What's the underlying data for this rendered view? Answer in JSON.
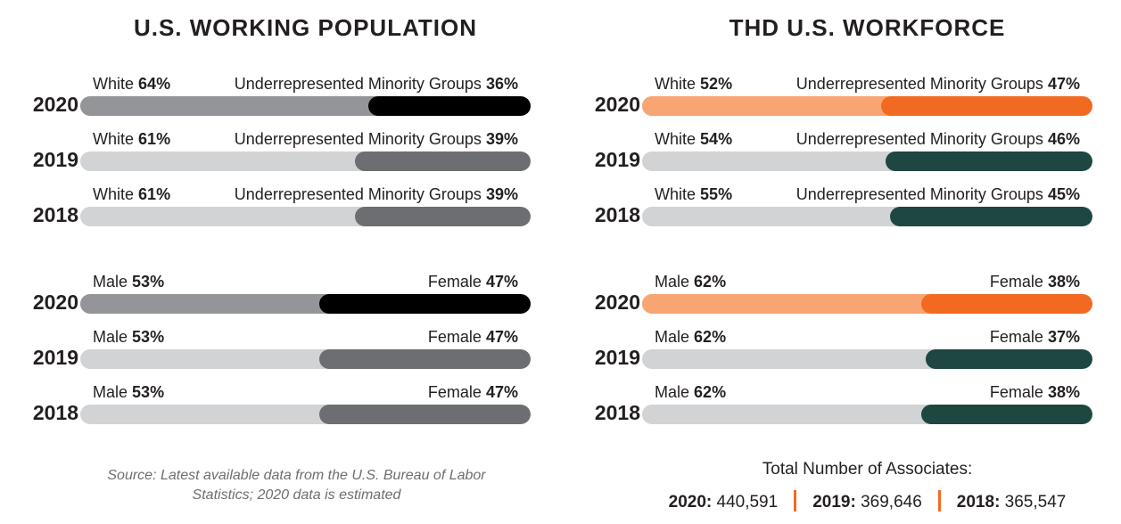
{
  "colors": {
    "track": "#d1d3d4",
    "usa_primary": "#939598",
    "usa_highlight": "#000000",
    "usa_secondary": "#6d6e71",
    "thd_primary": "#f8a573",
    "thd_highlight": "#f26a21",
    "thd_secondary": "#1d4740"
  },
  "chart_data": [
    {
      "type": "bar",
      "title": "U.S. WORKING POPULATION",
      "groups": [
        {
          "rows": [
            {
              "year": "2020",
              "left_label": "White",
              "left_value": 64,
              "right_label": "Underrepresented Minority Groups",
              "right_value": 36
            },
            {
              "year": "2019",
              "left_label": "White",
              "left_value": 61,
              "right_label": "Underrepresented Minority Groups",
              "right_value": 39
            },
            {
              "year": "2018",
              "left_label": "White",
              "left_value": 61,
              "right_label": "Underrepresented Minority Groups",
              "right_value": 39
            }
          ]
        },
        {
          "rows": [
            {
              "year": "2020",
              "left_label": "Male",
              "left_value": 53,
              "right_label": "Female",
              "right_value": 47
            },
            {
              "year": "2019",
              "left_label": "Male",
              "left_value": 53,
              "right_label": "Female",
              "right_value": 47
            },
            {
              "year": "2018",
              "left_label": "Male",
              "left_value": 53,
              "right_label": "Female",
              "right_value": 47
            }
          ]
        }
      ]
    },
    {
      "type": "bar",
      "title": "THD U.S. WORKFORCE",
      "groups": [
        {
          "rows": [
            {
              "year": "2020",
              "left_label": "White",
              "left_value": 52,
              "right_label": "Underrepresented Minority Groups",
              "right_value": 47
            },
            {
              "year": "2019",
              "left_label": "White",
              "left_value": 54,
              "right_label": "Underrepresented Minority Groups",
              "right_value": 46
            },
            {
              "year": "2018",
              "left_label": "White",
              "left_value": 55,
              "right_label": "Underrepresented Minority Groups",
              "right_value": 45
            }
          ]
        },
        {
          "rows": [
            {
              "year": "2020",
              "left_label": "Male",
              "left_value": 62,
              "right_label": "Female",
              "right_value": 38
            },
            {
              "year": "2019",
              "left_label": "Male",
              "left_value": 62,
              "right_label": "Female",
              "right_value": 37
            },
            {
              "year": "2018",
              "left_label": "Male",
              "left_value": 62,
              "right_label": "Female",
              "right_value": 38
            }
          ]
        }
      ]
    }
  ],
  "source_note": "Source: Latest available data from the U.S. Bureau of Labor Statistics; 2020 data is estimated",
  "totals": {
    "title": "Total Number of Associates:",
    "items": [
      {
        "year": "2020",
        "value": "440,591"
      },
      {
        "year": "2019",
        "value": "369,646"
      },
      {
        "year": "2018",
        "value": "365,547"
      }
    ]
  }
}
